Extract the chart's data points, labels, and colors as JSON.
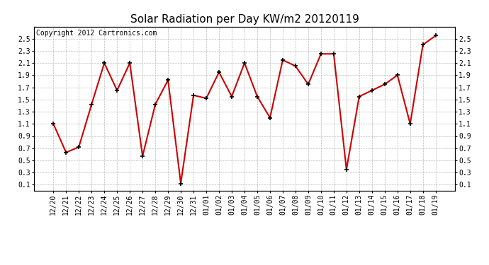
{
  "title": "Solar Radiation per Day KW/m2 20120119",
  "copyright": "Copyright 2012 Cartronics.com",
  "x_labels": [
    "12/20",
    "12/21",
    "12/22",
    "12/23",
    "12/24",
    "12/25",
    "12/26",
    "12/27",
    "12/28",
    "12/29",
    "12/30",
    "12/31",
    "01/01",
    "01/02",
    "01/03",
    "01/04",
    "01/05",
    "01/06",
    "01/07",
    "01/08",
    "01/09",
    "01/10",
    "01/11",
    "01/12",
    "01/13",
    "01/14",
    "01/15",
    "01/16",
    "01/17",
    "01/18",
    "01/19"
  ],
  "y_values": [
    1.1,
    0.63,
    0.72,
    1.42,
    2.1,
    1.65,
    2.1,
    0.57,
    1.42,
    1.82,
    0.12,
    1.57,
    1.52,
    1.95,
    1.55,
    2.1,
    1.55,
    1.2,
    2.15,
    2.05,
    1.75,
    2.25,
    2.25,
    0.35,
    1.55,
    1.65,
    1.75,
    1.9,
    1.1,
    2.4,
    2.55
  ],
  "line_color": "#cc0000",
  "marker": "+",
  "marker_size": 5,
  "marker_color": "#000000",
  "bg_color": "#ffffff",
  "grid_color": "#bbbbbb",
  "ylim": [
    0.0,
    2.7
  ],
  "yticks": [
    0.1,
    0.3,
    0.5,
    0.7,
    0.9,
    1.1,
    1.3,
    1.5,
    1.7,
    1.9,
    2.1,
    2.3,
    2.5
  ],
  "title_fontsize": 11,
  "copyright_fontsize": 7,
  "tick_fontsize": 7,
  "linewidth": 1.5
}
